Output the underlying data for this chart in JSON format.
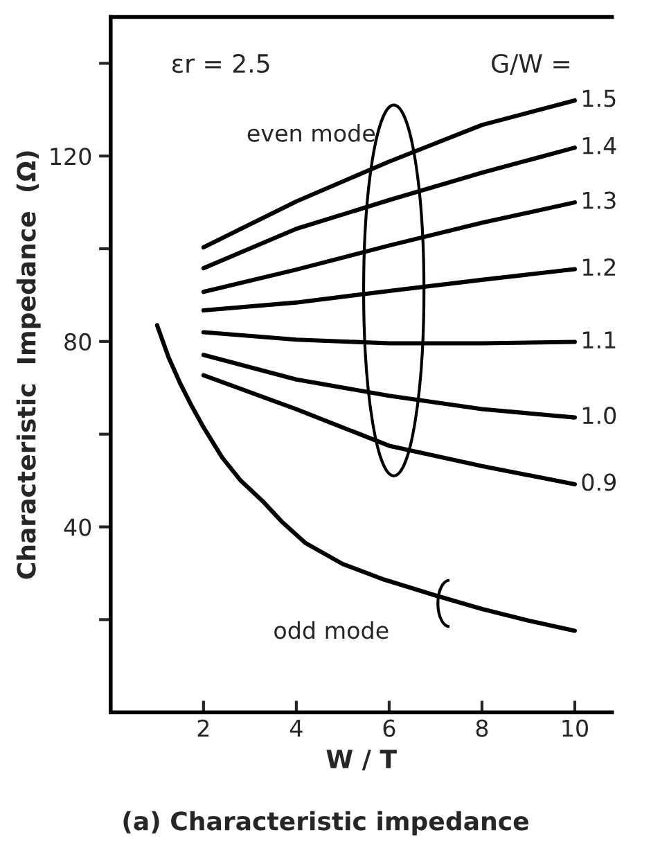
{
  "chart_data": {
    "type": "line",
    "title": "(a) Characteristic impedance",
    "xlabel": "W / T",
    "ylabel": "Characteristic  Impedance  (Ω)",
    "xlim": [
      0,
      10.8
    ],
    "ylim": [
      0,
      150
    ],
    "xticks": [
      2,
      4,
      6,
      8,
      10
    ],
    "yticks": [
      {
        "value": 20,
        "label": null
      },
      40,
      {
        "value": 60,
        "label": null
      },
      80,
      {
        "value": 100,
        "label": null
      },
      120,
      {
        "value": 140,
        "label": null
      }
    ],
    "grid": false,
    "legend": false,
    "marker": "none",
    "line_style": "solid",
    "annotations": [
      "εr = 2.5",
      "G/W =",
      "even mode",
      "odd mode"
    ],
    "series": [
      {
        "name": "1.5",
        "color": "#000000",
        "x": [
          2,
          4,
          6,
          8,
          10
        ],
        "values": [
          100.3,
          110.2,
          118.8,
          126.7,
          132
        ]
      },
      {
        "name": "1.4",
        "color": "#000000",
        "x": [
          2,
          4,
          6,
          8,
          10
        ],
        "values": [
          95.8,
          104.3,
          110.5,
          116.4,
          121.8
        ]
      },
      {
        "name": "1.3",
        "color": "#000000",
        "x": [
          2,
          4,
          6,
          8,
          10
        ],
        "values": [
          90.7,
          95.5,
          100.7,
          105.6,
          110
        ]
      },
      {
        "name": "1.2",
        "color": "#000000",
        "x": [
          2,
          4,
          6,
          8,
          10
        ],
        "values": [
          86.7,
          88.4,
          90.9,
          93.3,
          95.6
        ]
      },
      {
        "name": "1.1",
        "color": "#000000",
        "x": [
          2,
          4,
          6,
          8,
          10
        ],
        "values": [
          82,
          80.4,
          79.6,
          79.6,
          79.9
        ]
      },
      {
        "name": "1.0",
        "color": "#000000",
        "x": [
          2,
          4,
          6,
          8,
          10
        ],
        "values": [
          77.1,
          71.8,
          68.3,
          65.4,
          63.6
        ]
      },
      {
        "name": "0.9",
        "color": "#000000",
        "x": [
          2,
          4,
          6,
          8,
          10
        ],
        "values": [
          72.7,
          65.4,
          57.5,
          53.1,
          49.2
        ]
      },
      {
        "color": "#000000",
        "x": [
          1,
          1.25,
          1.5,
          1.75,
          2,
          2.4,
          2.8,
          3.3,
          3.7,
          4.2,
          5,
          5.9,
          7,
          8,
          9,
          10
        ],
        "values": [
          83.5,
          76.5,
          70.9,
          66,
          61.5,
          55,
          50,
          45.3,
          41,
          36.5,
          32,
          28.6,
          25.2,
          22.3,
          19.8,
          17.6
        ]
      }
    ]
  }
}
